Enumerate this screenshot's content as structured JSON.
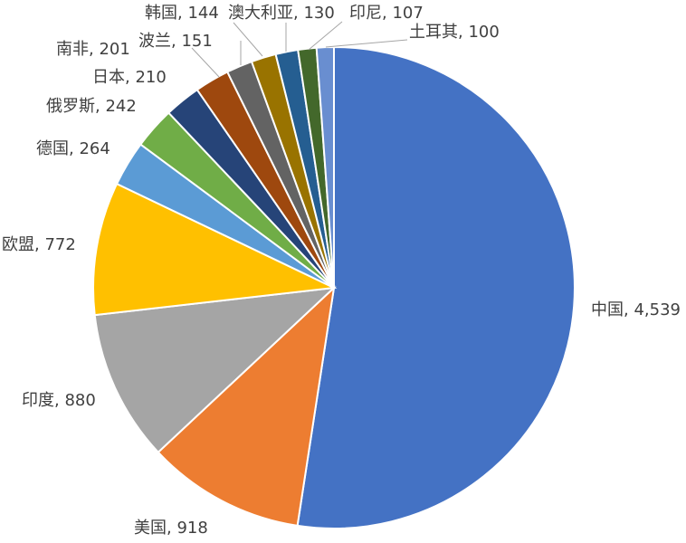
{
  "chart_data": {
    "type": "pie",
    "title": "",
    "label_format": "category, value",
    "start": "12 o'clock",
    "direction": "clockwise",
    "slices": [
      {
        "category": "中国",
        "value": 4539,
        "label": "中国, 4,539",
        "color": "#4472C4"
      },
      {
        "category": "美国",
        "value": 918,
        "label": "美国, 918",
        "color": "#ED7D31"
      },
      {
        "category": "印度",
        "value": 880,
        "label": "印度, 880",
        "color": "#A5A5A5"
      },
      {
        "category": "欧盟",
        "value": 772,
        "label": "欧盟, 772",
        "color": "#FFC000"
      },
      {
        "category": "德国",
        "value": 264,
        "label": "德国, 264",
        "color": "#5B9BD5"
      },
      {
        "category": "俄罗斯",
        "value": 242,
        "label": "俄罗斯, 242",
        "color": "#70AD47"
      },
      {
        "category": "日本",
        "value": 210,
        "label": "日本, 210",
        "color": "#264478"
      },
      {
        "category": "南非",
        "value": 201,
        "label": "南非, 201",
        "color": "#9E480E"
      },
      {
        "category": "波兰",
        "value": 151,
        "label": "波兰, 151",
        "color": "#636363"
      },
      {
        "category": "韩国",
        "value": 144,
        "label": "韩国, 144",
        "color": "#997300"
      },
      {
        "category": "澳大利亚",
        "value": 130,
        "label": "澳大利亚, 130",
        "color": "#255E91"
      },
      {
        "category": "印尼",
        "value": 107,
        "label": "印尼, 107",
        "color": "#43682B"
      },
      {
        "category": "土耳其",
        "value": 100,
        "label": "土耳其, 100",
        "color": "#698ED0"
      }
    ]
  }
}
